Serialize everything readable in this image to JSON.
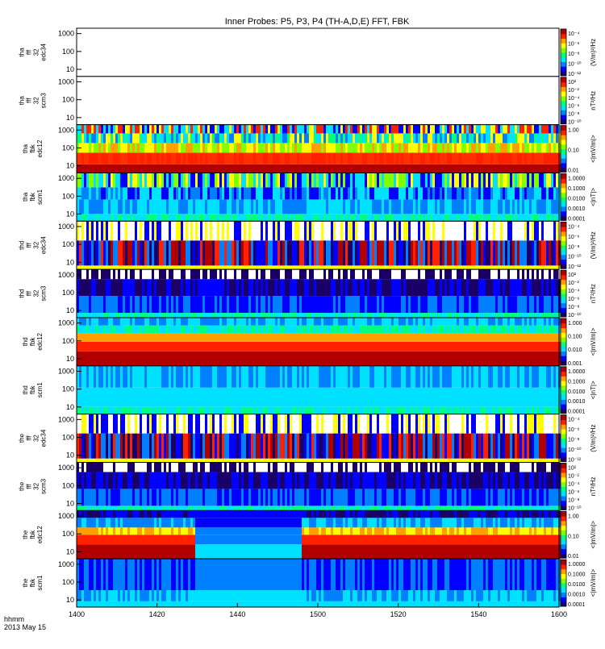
{
  "chart_data": {
    "type": "heatmap",
    "title": "Inner Probes: P5, P3, P4 (TH-A,D,E) FFT, FBK",
    "x_tick_labels": [
      "1400",
      "1420",
      "1440",
      "1500",
      "1520",
      "1540",
      "1600"
    ],
    "x_footer": {
      "time_label": "hhmm",
      "date_label": "2013 May 15"
    },
    "colorbar_colors": [
      "#1a0066",
      "#0000ff",
      "#0080ff",
      "#00e0ff",
      "#00ff80",
      "#80ff00",
      "#ffff00",
      "#ffa000",
      "#ff2000",
      "#b00000"
    ],
    "panels": [
      {
        "ylabel": [
          "tha",
          "fff",
          "32",
          "edc34"
        ],
        "y_ticks": [
          "1000",
          "100",
          "10"
        ],
        "unit": "(V/m)²/Hz",
        "cbar_ticks": [
          "10⁻⁴",
          "10⁻⁶",
          "10⁻⁸",
          "10⁻¹⁰",
          "10⁻¹²"
        ],
        "pattern": "empty"
      },
      {
        "ylabel": [
          "tha",
          "fff",
          "32",
          "scm3"
        ],
        "y_ticks": [
          "1000",
          "100",
          "10"
        ],
        "unit": "nT²/Hz",
        "cbar_ticks": [
          "10²",
          "10⁻²",
          "10⁻⁴",
          "10⁻⁶",
          "10⁻⁸",
          "10⁻¹⁰"
        ],
        "pattern": "empty"
      },
      {
        "ylabel": [
          "tha",
          "fbk",
          "edc12"
        ],
        "y_ticks": [
          "1000",
          "100",
          "10"
        ],
        "unit": "<|mV/m|>",
        "cbar_ticks": [
          "1.00",
          "0.10",
          "0.01"
        ],
        "pattern": "fbk_e"
      },
      {
        "ylabel": [
          "tha",
          "fbk",
          "scm1"
        ],
        "y_ticks": [
          "1000",
          "100",
          "10"
        ],
        "unit": "<|nT|>",
        "cbar_ticks": [
          "1.0000",
          "0.1000",
          "0.0100",
          "0.0010",
          "0.0001"
        ],
        "pattern": "fbk_b"
      },
      {
        "ylabel": [
          "thd",
          "fff",
          "32",
          "edc34"
        ],
        "y_ticks": [
          "1000",
          "100",
          "10"
        ],
        "unit": "(V/m)²/Hz",
        "cbar_ticks": [
          "10⁻⁴",
          "10⁻⁶",
          "10⁻⁸",
          "10⁻¹⁰",
          "10⁻¹²"
        ],
        "pattern": "fff_e"
      },
      {
        "ylabel": [
          "thd",
          "fff",
          "32",
          "scm3"
        ],
        "y_ticks": [
          "1000",
          "100",
          "10"
        ],
        "unit": "nT²/Hz",
        "cbar_ticks": [
          "10²",
          "10⁻²",
          "10⁻⁴",
          "10⁻⁶",
          "10⁻⁸",
          "10⁻¹⁰"
        ],
        "pattern": "fff_b"
      },
      {
        "ylabel": [
          "thd",
          "fbk",
          "edc12"
        ],
        "y_ticks": [
          "1000",
          "100",
          "10"
        ],
        "unit": "<|mV/m|>",
        "cbar_ticks": [
          "1.000",
          "0.100",
          "0.010",
          "0.001"
        ],
        "pattern": "fbk_e2"
      },
      {
        "ylabel": [
          "thd",
          "fbk",
          "scm1"
        ],
        "y_ticks": [
          "1000",
          "100",
          "10"
        ],
        "unit": "<|nT|>",
        "cbar_ticks": [
          "1.0000",
          "0.1000",
          "0.0100",
          "0.0010",
          "0.0001"
        ],
        "pattern": "fbk_b2"
      },
      {
        "ylabel": [
          "the",
          "fff",
          "32",
          "edc34"
        ],
        "y_ticks": [
          "1000",
          "100",
          "10"
        ],
        "unit": "(V/m)²/Hz",
        "cbar_ticks": [
          "10⁻⁴",
          "10⁻⁶",
          "10⁻⁸",
          "10⁻¹⁰",
          "10⁻¹²"
        ],
        "pattern": "fff_e"
      },
      {
        "ylabel": [
          "the",
          "fff",
          "32",
          "scm3"
        ],
        "y_ticks": [
          "1000",
          "100",
          "10"
        ],
        "unit": "nT²/Hz",
        "cbar_ticks": [
          "10²",
          "10⁻²",
          "10⁻⁴",
          "10⁻⁶",
          "10⁻⁸",
          "10⁻¹⁰"
        ],
        "pattern": "fff_b"
      },
      {
        "ylabel": [
          "the",
          "fbk",
          "edc12"
        ],
        "y_ticks": [
          "1000",
          "100",
          "10"
        ],
        "unit": "<|mV/m|>",
        "cbar_ticks": [
          "1.00",
          "0.10",
          "0.01"
        ],
        "pattern": "fbk_e_gap"
      },
      {
        "ylabel": [
          "the",
          "fbk",
          "scm1"
        ],
        "y_ticks": [
          "1000",
          "100",
          "10"
        ],
        "unit": "<|mV/m|>",
        "cbar_ticks": [
          "1.0000",
          "0.1000",
          "0.0100",
          "0.0010",
          "0.0001"
        ],
        "pattern": "fbk_b_gap"
      }
    ]
  }
}
